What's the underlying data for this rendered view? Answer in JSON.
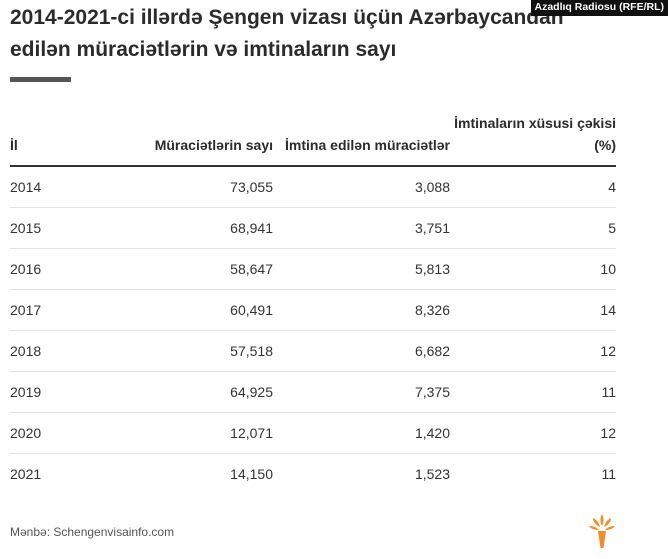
{
  "header": {
    "title": "2014-2021-ci illərdə Şengen vizası üçün Azərbaycandan edilən müraciətlərin və imtinaların sayı",
    "badge": "Azadlıq Radiosu (RFE/RL)"
  },
  "table": {
    "columns": [
      "İl",
      "Müraciətlərin sayı",
      "İmtina edilən müraciətlər",
      "İmtinaların xüsusi çəkisi (%)"
    ],
    "rows": [
      [
        "2014",
        "73,055",
        "3,088",
        "4"
      ],
      [
        "2015",
        "68,941",
        "3,751",
        "5"
      ],
      [
        "2016",
        "58,647",
        "5,813",
        "10"
      ],
      [
        "2017",
        "60,491",
        "8,326",
        "14"
      ],
      [
        "2018",
        "57,518",
        "6,682",
        "12"
      ],
      [
        "2019",
        "64,925",
        "7,375",
        "11"
      ],
      [
        "2020",
        "12,071",
        "1,420",
        "12"
      ],
      [
        "2021",
        "14,150",
        "1,523",
        "11"
      ]
    ]
  },
  "footer": {
    "source": "Mənbə: Schengenvisainfo.com",
    "logo_icon": "rfe-rl-torch-icon"
  },
  "colors": {
    "logo_orange": "#f28c28",
    "text": "#333333",
    "rule": "#555555"
  }
}
